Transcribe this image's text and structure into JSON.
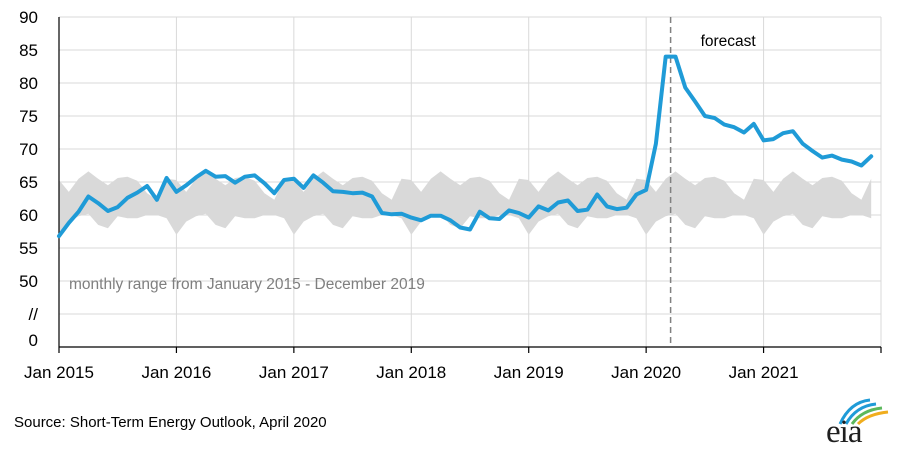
{
  "chart_data": {
    "type": "line",
    "title": "",
    "xlabel": "",
    "ylabel": "",
    "x_tick_labels": [
      "Jan 2015",
      "Jan 2016",
      "Jan 2017",
      "Jan 2018",
      "Jan 2019",
      "Jan 2020",
      "Jan 2021"
    ],
    "y_tick_labels": [
      "90",
      "85",
      "80",
      "75",
      "70",
      "65",
      "60",
      "55",
      "50",
      "//",
      "0"
    ],
    "y_tick_values": [
      90,
      85,
      80,
      75,
      70,
      65,
      60,
      55,
      50
    ],
    "ylim": [
      50,
      90
    ],
    "axis_break": true,
    "grid": true,
    "forecast_start": "2020-03",
    "forecast_label": "forecast",
    "range_band": {
      "label": "monthly range from January 2015 - December 2019",
      "months": [
        "Jan",
        "Feb",
        "Mar",
        "Apr",
        "May",
        "Jun",
        "Jul",
        "Aug",
        "Sep",
        "Oct",
        "Nov",
        "Dec"
      ],
      "min": [
        57.0,
        59.0,
        59.8,
        60.2,
        58.5,
        58.0,
        59.8,
        59.5,
        59.5,
        60.0,
        60.0,
        59.5
      ],
      "max": [
        65.3,
        63.5,
        65.5,
        66.6,
        65.5,
        64.5,
        65.6,
        65.8,
        65.2,
        63.3,
        62.3,
        65.5
      ]
    },
    "series": [
      {
        "color": "#1f9bd7",
        "start": "2015-01",
        "values": [
          56.8,
          58.8,
          60.5,
          62.8,
          61.8,
          60.6,
          61.2,
          62.6,
          63.4,
          64.4,
          62.3,
          65.6,
          63.5,
          64.5,
          65.7,
          66.7,
          65.8,
          65.9,
          64.9,
          65.8,
          66.0,
          64.8,
          63.3,
          65.3,
          65.5,
          64.1,
          66.0,
          64.9,
          63.6,
          63.5,
          63.3,
          63.4,
          62.8,
          60.3,
          60.1,
          60.2,
          59.6,
          59.2,
          59.9,
          59.9,
          59.2,
          58.1,
          57.8,
          60.5,
          59.5,
          59.4,
          60.7,
          60.3,
          59.6,
          61.3,
          60.7,
          61.9,
          62.2,
          60.6,
          60.8,
          63.1,
          61.3,
          60.9,
          61.1,
          63.1,
          63.8,
          70.8,
          84.0,
          84.0,
          79.3,
          77.2,
          75.0,
          74.7,
          73.7,
          73.3,
          72.5,
          73.8,
          71.3,
          71.5,
          72.4,
          72.7,
          70.8,
          69.7,
          68.7,
          69.0,
          68.4,
          68.1,
          67.5,
          68.9
        ]
      }
    ]
  },
  "footer": {
    "source": "Source: Short-Term Energy Outlook, April 2020",
    "logo_text": "eia"
  }
}
